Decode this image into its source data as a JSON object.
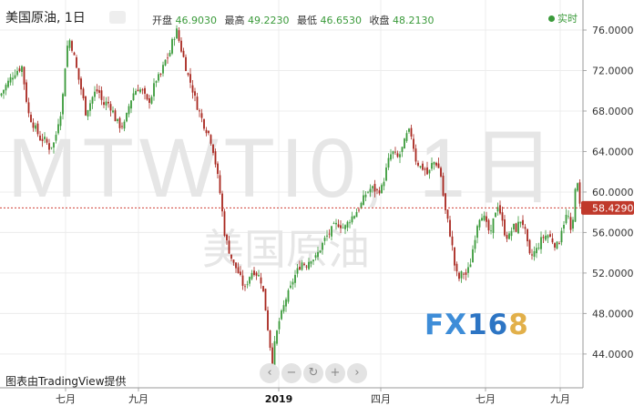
{
  "header": {
    "symbol_title": "美国原油, 1日",
    "open_label": "开盘",
    "open_value": "46.9030",
    "high_label": "最高",
    "high_value": "49.2230",
    "low_label": "最低",
    "low_value": "46.6530",
    "close_label": "收盘",
    "close_value": "48.2130",
    "live_label": "实时"
  },
  "watermark": {
    "ticker": "MTWTI0, 1日",
    "name": "美国原油"
  },
  "logo": {
    "fx": "FX",
    "num": "16",
    "eight": "8"
  },
  "credit": "图表由TradingView提供",
  "nav_icons": [
    "chevron-left-icon",
    "zoom-out-icon",
    "reset-icon",
    "zoom-in-icon",
    "chevron-right-icon"
  ],
  "colors": {
    "up": "#3a9a3a",
    "down": "#a8261e",
    "price_line": "#d04035",
    "price_tag_bg": "#c0392b",
    "grid": "#ececec"
  },
  "chart_data": {
    "type": "candlestick",
    "x_ticks": [
      "七月",
      "九月",
      "2019",
      "四月",
      "七月",
      "九月"
    ],
    "y_ticks": [
      "44.0000",
      "48.0000",
      "52.0000",
      "56.0000",
      "60.0000",
      "64.0000",
      "68.0000",
      "72.0000",
      "76.0000"
    ],
    "ylim": [
      41.5,
      78.2
    ],
    "current_price": "58.4290",
    "grid": true,
    "close_path": [
      [
        0,
        69.5
      ],
      [
        7,
        70.6
      ],
      [
        16,
        71.8
      ],
      [
        24,
        72.4
      ],
      [
        31,
        67.8
      ],
      [
        37,
        66.6
      ],
      [
        44,
        65.3
      ],
      [
        50,
        65.1
      ],
      [
        54,
        64.4
      ],
      [
        60,
        64.9
      ],
      [
        64,
        67.0
      ],
      [
        68,
        68.4
      ],
      [
        73,
        74.2
      ],
      [
        77,
        75.1
      ],
      [
        81,
        73.5
      ],
      [
        86,
        71.3
      ],
      [
        90,
        69.8
      ],
      [
        94,
        67.9
      ],
      [
        98,
        68.6
      ],
      [
        103,
        69.7
      ],
      [
        108,
        70.1
      ],
      [
        113,
        68.6
      ],
      [
        118,
        68.9
      ],
      [
        123,
        68.2
      ],
      [
        127,
        67.1
      ],
      [
        132,
        66.5
      ],
      [
        137,
        66.7
      ],
      [
        142,
        68.7
      ],
      [
        147,
        69.9
      ],
      [
        152,
        70.3
      ],
      [
        157,
        69.8
      ],
      [
        162,
        68.8
      ],
      [
        166,
        69.4
      ],
      [
        171,
        71.1
      ],
      [
        176,
        71.4
      ],
      [
        181,
        72.9
      ],
      [
        186,
        73.6
      ],
      [
        190,
        75.2
      ],
      [
        194,
        75.9
      ],
      [
        198,
        74.4
      ],
      [
        202,
        73.1
      ],
      [
        206,
        71.6
      ],
      [
        210,
        70.6
      ],
      [
        215,
        68.9
      ],
      [
        220,
        67.6
      ],
      [
        225,
        66.4
      ],
      [
        229,
        65.8
      ],
      [
        233,
        64.7
      ],
      [
        238,
        62.1
      ],
      [
        242,
        59.6
      ],
      [
        247,
        55.6
      ],
      [
        251,
        54.4
      ],
      [
        256,
        52.9
      ],
      [
        260,
        52.4
      ],
      [
        265,
        51.2
      ],
      [
        269,
        50.4
      ],
      [
        273,
        51.6
      ],
      [
        278,
        52.3
      ],
      [
        282,
        51.9
      ],
      [
        286,
        51.5
      ],
      [
        290,
        49.6
      ],
      [
        293,
        47.3
      ],
      [
        296,
        45.1
      ],
      [
        299,
        43.4
      ],
      [
        302,
        45.2
      ],
      [
        306,
        47.1
      ],
      [
        310,
        48.2
      ],
      [
        314,
        49.5
      ],
      [
        318,
        50.2
      ],
      [
        322,
        51.4
      ],
      [
        327,
        52.3
      ],
      [
        331,
        53.1
      ],
      [
        336,
        52.8
      ],
      [
        341,
        53.5
      ],
      [
        346,
        53.4
      ],
      [
        352,
        54.5
      ],
      [
        357,
        55.4
      ],
      [
        362,
        56.0
      ],
      [
        367,
        56.6
      ],
      [
        372,
        56.9
      ],
      [
        378,
        56.4
      ],
      [
        384,
        57.3
      ],
      [
        390,
        57.9
      ],
      [
        396,
        58.7
      ],
      [
        402,
        59.9
      ],
      [
        408,
        60.4
      ],
      [
        414,
        60.1
      ],
      [
        419,
        60.4
      ],
      [
        424,
        62.2
      ],
      [
        428,
        63.6
      ],
      [
        432,
        63.9
      ],
      [
        436,
        63.3
      ],
      [
        440,
        63.9
      ],
      [
        444,
        64.9
      ],
      [
        448,
        66.0
      ],
      [
        452,
        65.6
      ],
      [
        456,
        63.3
      ],
      [
        461,
        62.5
      ],
      [
        466,
        62.3
      ],
      [
        470,
        61.6
      ],
      [
        475,
        63.0
      ],
      [
        480,
        62.8
      ],
      [
        484,
        61.6
      ],
      [
        488,
        58.5
      ],
      [
        492,
        56.9
      ],
      [
        496,
        54.9
      ],
      [
        499,
        52.8
      ],
      [
        503,
        51.3
      ],
      [
        508,
        52.1
      ],
      [
        512,
        51.8
      ],
      [
        516,
        52.8
      ],
      [
        520,
        54.9
      ],
      [
        524,
        56.9
      ],
      [
        528,
        58.0
      ],
      [
        531,
        57.5
      ],
      [
        535,
        56.4
      ],
      [
        539,
        55.8
      ],
      [
        543,
        57.9
      ],
      [
        547,
        58.9
      ],
      [
        551,
        57.1
      ],
      [
        555,
        55.7
      ],
      [
        559,
        55.6
      ],
      [
        563,
        56.6
      ],
      [
        567,
        56.3
      ],
      [
        571,
        57.3
      ],
      [
        575,
        56.8
      ],
      [
        578,
        55.2
      ],
      [
        582,
        53.4
      ],
      [
        585,
        53.9
      ],
      [
        589,
        54.3
      ],
      [
        593,
        55.1
      ],
      [
        597,
        55.6
      ],
      [
        601,
        55.8
      ],
      [
        605,
        55.4
      ],
      [
        609,
        54.9
      ],
      [
        613,
        54.6
      ],
      [
        616,
        56.3
      ],
      [
        619,
        57.0
      ],
      [
        622,
        57.7
      ],
      [
        625,
        57.4
      ],
      [
        628,
        54.4
      ],
      [
        630,
        59.8
      ],
      [
        633,
        61.5
      ],
      [
        636,
        58.7
      ],
      [
        640,
        58.2
      ]
    ]
  }
}
